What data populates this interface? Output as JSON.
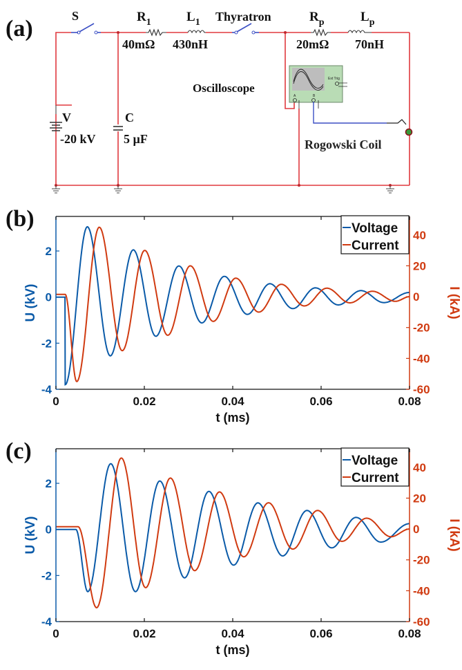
{
  "panels": {
    "a": {
      "label": "(a)",
      "components": {
        "switch": {
          "name": "S"
        },
        "r1": {
          "name": "R",
          "sub": "1",
          "value": "40mΩ"
        },
        "l1": {
          "name": "L",
          "sub": "1",
          "value": "430nH"
        },
        "thyratron": {
          "name": "Thyratron"
        },
        "rp": {
          "name": "R",
          "sub": "p",
          "value": "20mΩ"
        },
        "lp": {
          "name": "L",
          "sub": "p",
          "value": "70nH"
        },
        "source": {
          "name": "V",
          "value": "-20 kV"
        },
        "capacitor": {
          "name": "C",
          "value": "5 µF"
        },
        "oscilloscope": {
          "name": "Oscilloscope",
          "ext_trig": "Ext Trig",
          "ch_a": "A",
          "ch_b": "B"
        },
        "coil": {
          "name": "Rogowski Coil"
        }
      },
      "colors": {
        "wire": "#e0393e",
        "probe_wire": "#3b4fc4",
        "scope_body": "#b9dcb5",
        "scope_screen": "#bdbdbd"
      }
    },
    "b": {
      "label": "(b)"
    },
    "c": {
      "label": "(c)"
    }
  },
  "chart_data": [
    {
      "type": "line",
      "panel": "b",
      "title": "",
      "xlabel": "t (ms)",
      "ylabel": "U (kV)",
      "ylabel_right": "I (kA)",
      "xlim": [
        0,
        0.08
      ],
      "ylim": [
        -4,
        3.5
      ],
      "ylim_right": [
        -60,
        52
      ],
      "xticks": [
        "0",
        "0.02",
        "0.04",
        "0.06",
        "0.08"
      ],
      "xtick_values": [
        0,
        0.02,
        0.04,
        0.06,
        0.08
      ],
      "yticks": [
        "-4",
        "-2",
        "0",
        "2"
      ],
      "ytick_values": [
        -4,
        -2,
        0,
        2
      ],
      "yticks_right": [
        "-60",
        "-40",
        "-20",
        "0",
        "20",
        "40"
      ],
      "ytick_right_values": [
        -60,
        -40,
        -20,
        0,
        20,
        40
      ],
      "legend": {
        "position": "top-right",
        "entries": [
          "Voltage",
          "Current"
        ]
      },
      "series": [
        {
          "name": "Voltage",
          "axis": "left",
          "color": "#0a5aa8",
          "model": {
            "t0": 0.0021,
            "pre": 0.0,
            "first_min": -3.8,
            "period": 0.0103,
            "decay": 0.024,
            "amp": 3.7,
            "phase": "neg-cos",
            "step": true
          },
          "peaks": [
            [
              0.0021,
              -3.8
            ],
            [
              0.0071,
              3.05
            ],
            [
              0.0123,
              -2.55
            ],
            [
              0.0175,
              2.05
            ],
            [
              0.0226,
              -1.7
            ],
            [
              0.0278,
              1.35
            ],
            [
              0.033,
              -1.12
            ],
            [
              0.0381,
              0.9
            ],
            [
              0.0433,
              -0.75
            ],
            [
              0.0484,
              0.58
            ],
            [
              0.0536,
              -0.5
            ],
            [
              0.0587,
              0.4
            ],
            [
              0.0639,
              -0.34
            ],
            [
              0.069,
              0.28
            ],
            [
              0.0742,
              -0.24
            ],
            [
              0.08,
              0.2
            ]
          ]
        },
        {
          "name": "Current",
          "axis": "right",
          "color": "#d03a10",
          "model": {
            "t0": 0.0021,
            "pre": 1.5,
            "period": 0.0103,
            "decay": 0.024,
            "amp": 57,
            "lag": 0.0026
          },
          "peaks": [
            [
              0.0021,
              1.5
            ],
            [
              0.0047,
              -55
            ],
            [
              0.0098,
              45
            ],
            [
              0.015,
              -35
            ],
            [
              0.0201,
              30
            ],
            [
              0.0253,
              -25
            ],
            [
              0.0304,
              20
            ],
            [
              0.0356,
              -16
            ],
            [
              0.0407,
              12
            ],
            [
              0.0459,
              -10
            ],
            [
              0.051,
              8
            ],
            [
              0.0562,
              -6
            ],
            [
              0.0613,
              5.5
            ],
            [
              0.0665,
              -4
            ],
            [
              0.0716,
              3.5
            ],
            [
              0.0768,
              -3
            ],
            [
              0.08,
              0
            ]
          ]
        }
      ]
    },
    {
      "type": "line",
      "panel": "c",
      "title": "",
      "xlabel": "t (ms)",
      "ylabel": "U (kV)",
      "ylabel_right": "I (kA)",
      "xlim": [
        0,
        0.08
      ],
      "ylim": [
        -4,
        3.5
      ],
      "ylim_right": [
        -60,
        52
      ],
      "xticks": [
        "0",
        "0.02",
        "0.04",
        "0.06",
        "0.08"
      ],
      "xtick_values": [
        0,
        0.02,
        0.04,
        0.06,
        0.08
      ],
      "yticks": [
        "-4",
        "-2",
        "0",
        "2"
      ],
      "ytick_values": [
        -4,
        -2,
        0,
        2
      ],
      "yticks_right": [
        "-60",
        "-40",
        "-20",
        "0",
        "20",
        "40"
      ],
      "ytick_right_values": [
        -60,
        -40,
        -20,
        0,
        20,
        40
      ],
      "legend": {
        "position": "top-right",
        "entries": [
          "Voltage",
          "Current"
        ]
      },
      "series": [
        {
          "name": "Voltage",
          "axis": "left",
          "color": "#0a5aa8",
          "peaks": [
            [
              0.0,
              0.0
            ],
            [
              0.0045,
              0.0
            ],
            [
              0.0072,
              -2.7
            ],
            [
              0.0124,
              2.85
            ],
            [
              0.018,
              -2.7
            ],
            [
              0.0235,
              2.1
            ],
            [
              0.0291,
              -2.1
            ],
            [
              0.0346,
              1.65
            ],
            [
              0.0402,
              -1.55
            ],
            [
              0.0457,
              1.15
            ],
            [
              0.0513,
              -1.15
            ],
            [
              0.0568,
              0.82
            ],
            [
              0.0624,
              -0.8
            ],
            [
              0.0679,
              0.52
            ],
            [
              0.0735,
              -0.55
            ],
            [
              0.08,
              0.25
            ]
          ]
        },
        {
          "name": "Current",
          "axis": "right",
          "color": "#d03a10",
          "peaks": [
            [
              0.0,
              1.5
            ],
            [
              0.005,
              1.5
            ],
            [
              0.0092,
              -51
            ],
            [
              0.0148,
              46
            ],
            [
              0.0203,
              -38
            ],
            [
              0.0259,
              33
            ],
            [
              0.0314,
              -27
            ],
            [
              0.037,
              24
            ],
            [
              0.0425,
              -18
            ],
            [
              0.0481,
              17
            ],
            [
              0.0536,
              -13
            ],
            [
              0.0592,
              12
            ],
            [
              0.0647,
              -8
            ],
            [
              0.0703,
              7
            ],
            [
              0.0758,
              -5
            ],
            [
              0.08,
              0
            ]
          ]
        }
      ]
    }
  ]
}
